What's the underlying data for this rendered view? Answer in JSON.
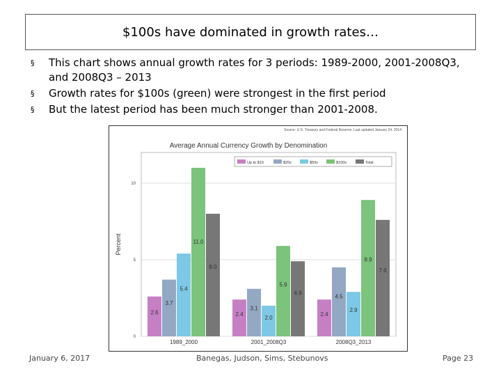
{
  "slide": {
    "title": "$100s have dominated in growth rates…",
    "bullets": [
      "This chart shows annual growth rates for 3 periods: 1989-2000, 2001-2008Q3, and 2008Q3 – 2013",
      "Growth rates for $100s (green) were strongest in the first period",
      "But the latest period has been much stronger than 2001-2008."
    ],
    "bullet_marker": "§",
    "footer": {
      "date": "January 6, 2017",
      "authors": "Banegas, Judson, Sims, Stebunovs",
      "page": "Page 23"
    }
  },
  "chart_data": {
    "type": "bar",
    "title": "Average Annual Currency Growth by Denomination",
    "source": "Source: U.S. Treasury and Federal Reserve. Last updated January 24, 2014",
    "xlabel": "",
    "ylabel": "Percent",
    "ylim": [
      0,
      12
    ],
    "yticks": [
      "0",
      "5",
      "10"
    ],
    "grid": true,
    "legend_position": "top-right",
    "categories": [
      "1989_2000",
      "2001_2008Q3",
      "2008Q3_2013"
    ],
    "series": [
      {
        "name": "Up to $10",
        "color": "#c77fc4",
        "values": [
          2.6,
          2.4,
          2.4
        ],
        "labels": [
          "2.6",
          "2.4",
          "2.4"
        ]
      },
      {
        "name": "$20s",
        "color": "#93a8c3",
        "values": [
          3.7,
          3.1,
          4.5
        ],
        "labels": [
          "3.7",
          "3.1",
          "4.5"
        ]
      },
      {
        "name": "$50s",
        "color": "#7cc8e6",
        "values": [
          5.4,
          2.0,
          2.9
        ],
        "labels": [
          "5.4",
          "2.0",
          "2.9"
        ]
      },
      {
        "name": "$100s",
        "color": "#7cc37c",
        "values": [
          11.0,
          5.9,
          8.9
        ],
        "labels": [
          "11.0",
          "5.9",
          "8.9"
        ]
      },
      {
        "name": "Total",
        "color": "#777777",
        "values": [
          8.0,
          4.9,
          7.6
        ],
        "labels": [
          "8.0",
          "4.9",
          "7.6"
        ]
      }
    ]
  }
}
